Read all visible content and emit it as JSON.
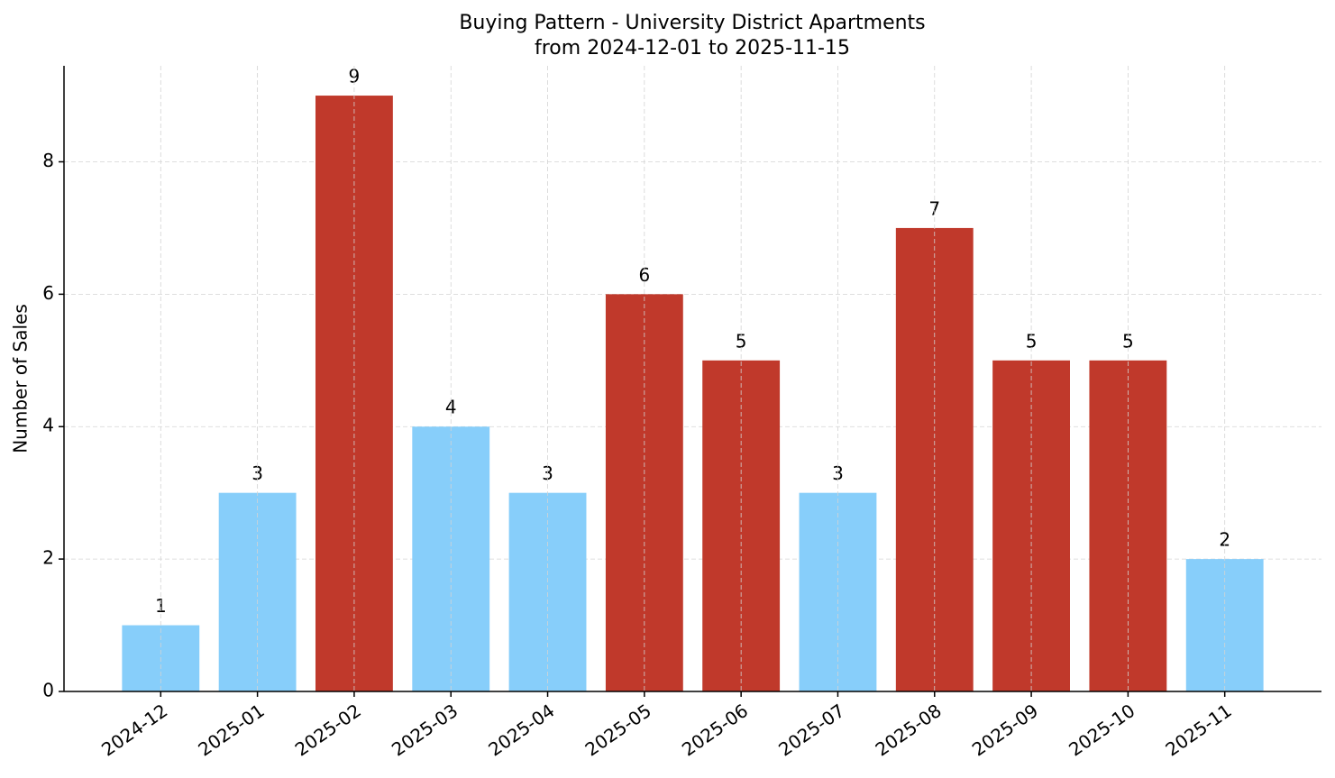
{
  "chart_data": {
    "type": "bar",
    "title": "Buying Pattern - University District Apartments",
    "subtitle": "from 2024-12-01 to 2025-11-15",
    "y_label": "Number of Sales",
    "categories": [
      "2024-12",
      "2025-01",
      "2025-02",
      "2025-03",
      "2025-04",
      "2025-05",
      "2025-06",
      "2025-07",
      "2025-08",
      "2025-09",
      "2025-10",
      "2025-11"
    ],
    "values": [
      1,
      3,
      9,
      4,
      3,
      6,
      5,
      3,
      7,
      5,
      5,
      2
    ],
    "colors": [
      "#87cefa",
      "#87cefa",
      "#c0392b",
      "#87cefa",
      "#87cefa",
      "#c0392b",
      "#c0392b",
      "#87cefa",
      "#c0392b",
      "#c0392b",
      "#c0392b",
      "#87cefa"
    ],
    "ylim": [
      0,
      9.45
    ],
    "yticks": [
      0,
      2,
      4,
      6,
      8
    ],
    "grid": true
  }
}
